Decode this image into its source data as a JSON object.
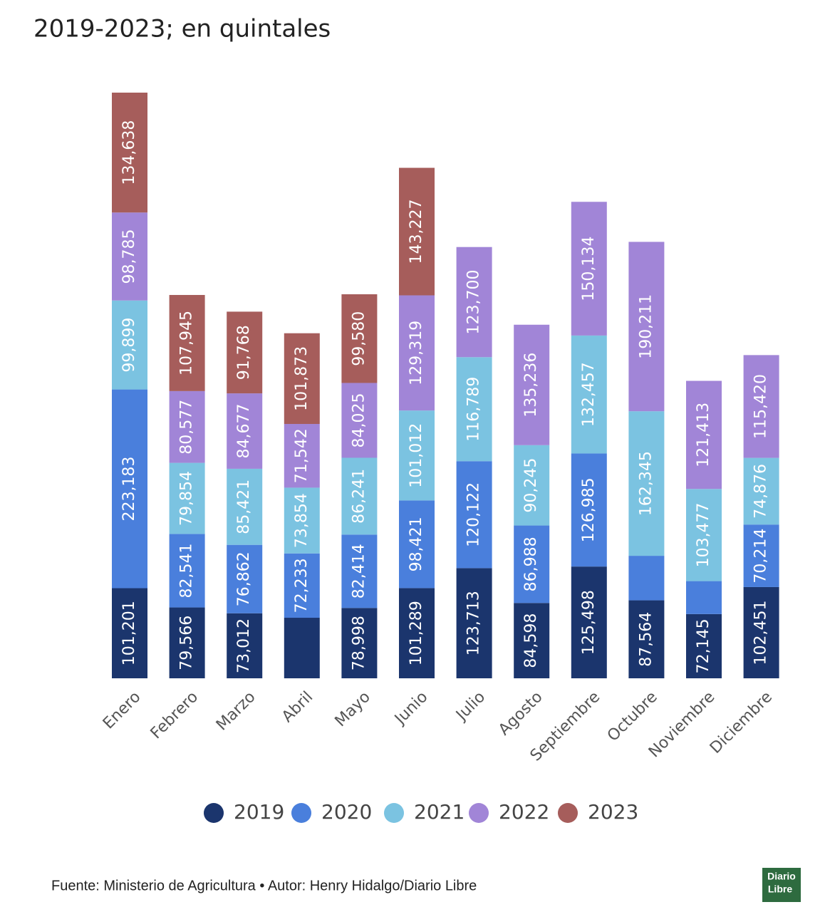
{
  "chart_data": {
    "type": "stacked_bar",
    "title": "2019-2023; en quintales",
    "source": "Fuente: Ministerio de Agricultura • Autor: Henry Hidalgo/Diario Libre",
    "logo": [
      "Diario",
      "Libre"
    ],
    "categories": [
      "Enero",
      "Febrero",
      "Marzo",
      "Abril",
      "Mayo",
      "Junio",
      "Julio",
      "Agosto",
      "Septiembre",
      "Octubre",
      "Noviembre",
      "Diciembre"
    ],
    "series": [
      {
        "name": "2019",
        "color": "#1b356d",
        "values": [
          101201,
          79566,
          73012,
          68000,
          78998,
          101289,
          123713,
          84598,
          125498,
          87564,
          72145,
          102451
        ],
        "value_labels": [
          "101,201",
          "79,566",
          "73,012",
          null,
          "78,998",
          "101,289",
          "123,713",
          "84,598",
          "125,498",
          "87,564",
          "72,145",
          "102,451"
        ]
      },
      {
        "name": "2020",
        "color": "#4a7fdc",
        "values": [
          223183,
          82541,
          76862,
          72233,
          82414,
          98421,
          120122,
          86988,
          126985,
          50000,
          37000,
          70214
        ],
        "value_labels": [
          "223,183",
          "82,541",
          "76,862",
          "72,233",
          "82,414",
          "98,421",
          "120,122",
          "86,988",
          "126,985",
          null,
          null,
          "70,214"
        ]
      },
      {
        "name": "2021",
        "color": "#7bc3e1",
        "values": [
          99899,
          79854,
          85421,
          73854,
          86241,
          101012,
          116789,
          90245,
          132457,
          162345,
          103477,
          74876
        ],
        "value_labels": [
          "99,899",
          "79,854",
          "85,421",
          "73,854",
          "86,241",
          "101,012",
          "116,789",
          "90,245",
          "132,457",
          "162,345",
          "103,477",
          "74,876"
        ]
      },
      {
        "name": "2022",
        "color": "#a185d7",
        "values": [
          98785,
          80577,
          84677,
          71542,
          84025,
          129319,
          123700,
          135236,
          150134,
          190211,
          121413,
          115420
        ],
        "value_labels": [
          "98,785",
          "80,577",
          "84,677",
          "71,542",
          "84,025",
          "129,319",
          "123,700",
          "135,236",
          "150,134",
          "190,211",
          "121,413",
          "115,420"
        ]
      },
      {
        "name": "2023",
        "color": "#a65d5b",
        "values": [
          134638,
          107945,
          91768,
          101873,
          99580,
          143227,
          null,
          null,
          null,
          null,
          null,
          null
        ],
        "value_labels": [
          "134,638",
          "107,945",
          "91,768",
          "101,873",
          "99,580",
          "143,227",
          null,
          null,
          null,
          null,
          null,
          null
        ]
      }
    ]
  }
}
